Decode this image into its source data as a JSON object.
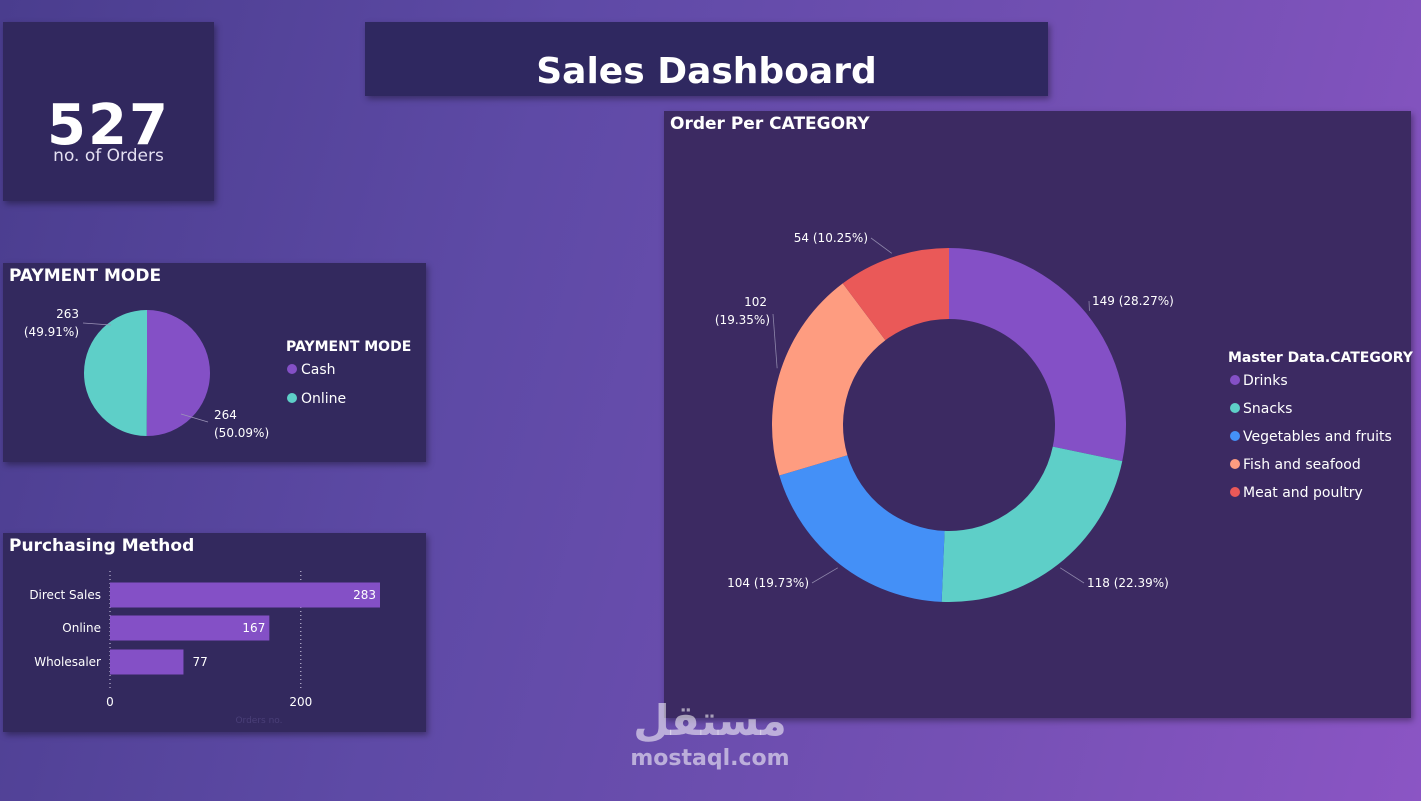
{
  "dashboard": {
    "title": "Sales Dashboard"
  },
  "kpi": {
    "value": "527",
    "label": "no. of Orders"
  },
  "payment": {
    "title": "PAYMENT MODE"
  },
  "purchasing": {
    "title": "Purchasing Method"
  },
  "category": {
    "title": "Order Per CATEGORY"
  },
  "watermark": {
    "logo": "مستقل",
    "url": "mostaql.com"
  },
  "chart_data": [
    {
      "id": "payment_mode",
      "type": "pie",
      "legend_title": "PAYMENT MODE",
      "legend_position": "right",
      "slices": [
        {
          "label": "Cash",
          "value": 264,
          "percent_label": "(50.09%)",
          "color": "#8450c6"
        },
        {
          "label": "Online",
          "value": 263,
          "percent_label": "(49.91%)",
          "color": "#5ecfc8"
        }
      ]
    },
    {
      "id": "purchasing_method",
      "type": "bar",
      "orientation": "horizontal",
      "categories": [
        "Direct Sales",
        "Online",
        "Wholesaler"
      ],
      "values": [
        283,
        167,
        77
      ],
      "xlabel": "Orders no.",
      "xlim": [
        0,
        283
      ],
      "xticks": [
        0,
        200
      ],
      "grid": true,
      "color": "#8450c6"
    },
    {
      "id": "order_per_category",
      "type": "pie",
      "style": "donut",
      "legend_title": "Master Data.CATEGORY",
      "legend_position": "right",
      "slices": [
        {
          "label": "Drinks",
          "value": 149,
          "percent_label": "(28.27%)",
          "color": "#8450c6"
        },
        {
          "label": "Snacks",
          "value": 118,
          "percent_label": "(22.39%)",
          "color": "#5ecfc8"
        },
        {
          "label": "Vegetables and fruits",
          "value": 104,
          "percent_label": "(19.73%)",
          "color": "#4490f7"
        },
        {
          "label": "Fish and seafood",
          "value": 102,
          "percent_label": "(19.35%)",
          "color": "#fe9c80"
        },
        {
          "label": "Meat and poultry",
          "value": 54,
          "percent_label": "(10.25%)",
          "color": "#ea5958"
        }
      ]
    }
  ]
}
